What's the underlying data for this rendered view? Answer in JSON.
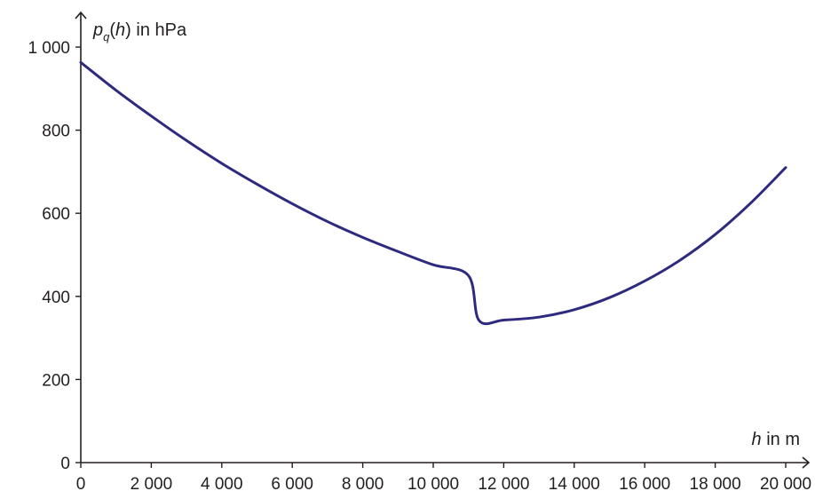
{
  "chart_data": {
    "type": "line",
    "title": "",
    "xlabel": {
      "var": "h",
      "rest": " in m"
    },
    "ylabel": {
      "var": "p",
      "sub": "q",
      "arg": "(h)",
      "rest": " in hPa"
    },
    "xlim": [
      0,
      20000
    ],
    "ylim": [
      0,
      1000
    ],
    "x_ticks": [
      0,
      2000,
      4000,
      6000,
      8000,
      10000,
      12000,
      14000,
      16000,
      18000,
      20000
    ],
    "x_tick_labels": [
      "0",
      "2 000",
      "4 000",
      "6 000",
      "8 000",
      "10 000",
      "12 000",
      "14 000",
      "16 000",
      "18 000",
      "20 000"
    ],
    "y_ticks": [
      0,
      200,
      400,
      600,
      800,
      1000
    ],
    "y_tick_labels": [
      "0",
      "200",
      "400",
      "600",
      "800",
      "1 000"
    ],
    "grid": false,
    "series": [
      {
        "color": "#2e2a7d",
        "x": [
          0,
          1000,
          2000,
          3000,
          4000,
          5000,
          6000,
          7000,
          8000,
          9000,
          10000,
          11000,
          11300,
          12000,
          13000,
          14000,
          15000,
          16000,
          17000,
          18000,
          19000,
          20000
        ],
        "y": [
          963,
          896,
          834,
          775,
          720,
          670,
          623,
          580,
          542,
          508,
          476,
          450,
          342,
          343,
          350,
          368,
          397,
          437,
          487,
          549,
          624,
          710
        ]
      }
    ]
  }
}
